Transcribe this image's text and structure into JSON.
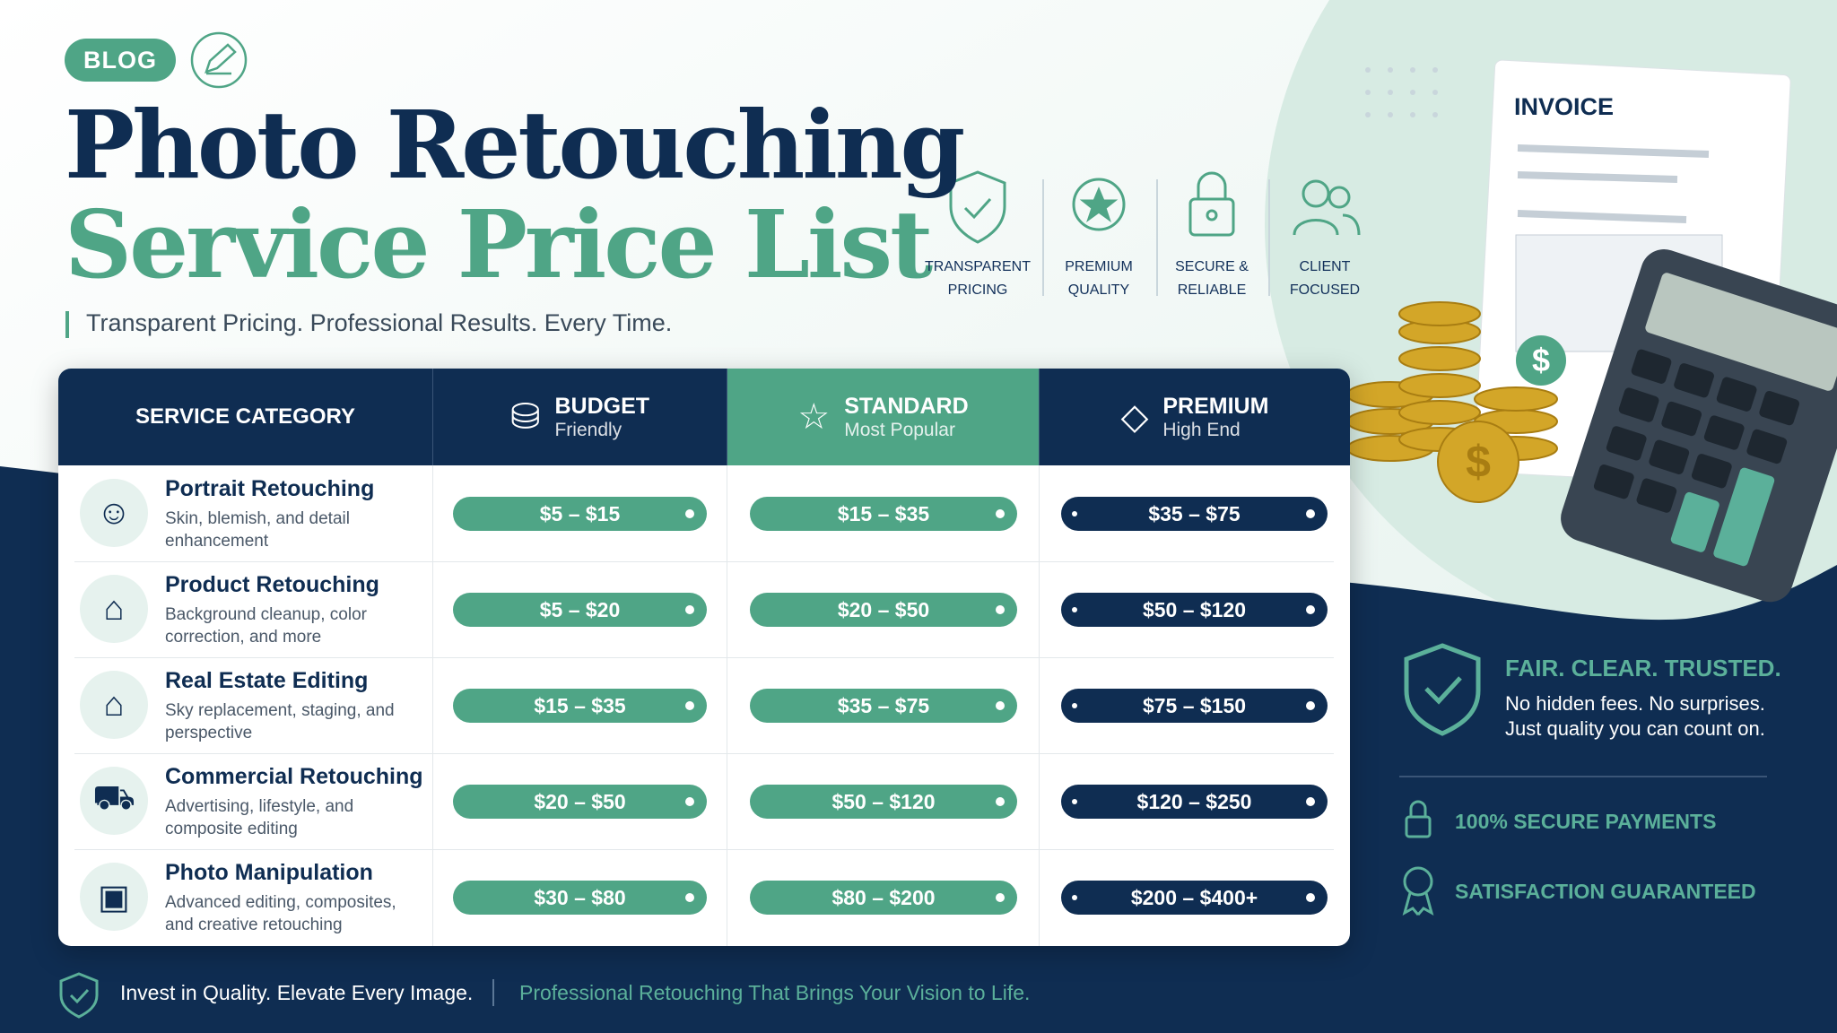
{
  "header": {
    "badge": "BLOG",
    "title_line1": "Photo Retouching",
    "title_line2": "Service Price List",
    "subtitle": "Transparent Pricing. Professional Results. Every Time."
  },
  "features": [
    {
      "line1": "TRANSPARENT",
      "line2": "PRICING"
    },
    {
      "line1": "PREMIUM",
      "line2": "QUALITY"
    },
    {
      "line1": "SECURE &",
      "line2": "RELIABLE"
    },
    {
      "line1": "CLIENT",
      "line2": "FOCUSED"
    }
  ],
  "invoice": {
    "title": "INVOICE"
  },
  "table": {
    "columns": [
      {
        "title": "SERVICE CATEGORY"
      },
      {
        "title": "BUDGET",
        "subtitle": "Friendly"
      },
      {
        "title": "STANDARD",
        "subtitle": "Most Popular"
      },
      {
        "title": "PREMIUM",
        "subtitle": "High End"
      }
    ],
    "rows": [
      {
        "name": "Portrait Retouching",
        "description": "Skin, blemish, and detail enhancement",
        "prices": [
          "$5 – $15",
          "$15 – $35",
          "$35 – $75"
        ]
      },
      {
        "name": "Product Retouching",
        "description": "Background cleanup, color correction, and more",
        "prices": [
          "$5 – $20",
          "$20 – $50",
          "$50 – $120"
        ]
      },
      {
        "name": "Real Estate Editing",
        "description": "Sky replacement, staging, and perspective",
        "prices": [
          "$15 – $35",
          "$35 – $75",
          "$75 – $150"
        ]
      },
      {
        "name": "Commercial Retouching",
        "description": "Advertising, lifestyle, and composite editing",
        "prices": [
          "$20 – $50",
          "$50 – $120",
          "$120 – $250"
        ]
      },
      {
        "name": "Photo Manipulation",
        "description": "Advanced editing, composites, and creative retouching",
        "prices": [
          "$30 – $80",
          "$80 – $200",
          "$200 – $400+"
        ]
      }
    ]
  },
  "side_panel": {
    "title": "FAIR. CLEAR. TRUSTED.",
    "line1": "No hidden fees. No surprises.",
    "line2": "Just quality you can count on.",
    "badge1": "100% SECURE PAYMENTS",
    "badge2": "SATISFACTION GUARANTEED"
  },
  "footer": {
    "left": "Invest in Quality. Elevate Every Image.",
    "right": "Professional Retouching That Brings Your Vision to Life."
  }
}
